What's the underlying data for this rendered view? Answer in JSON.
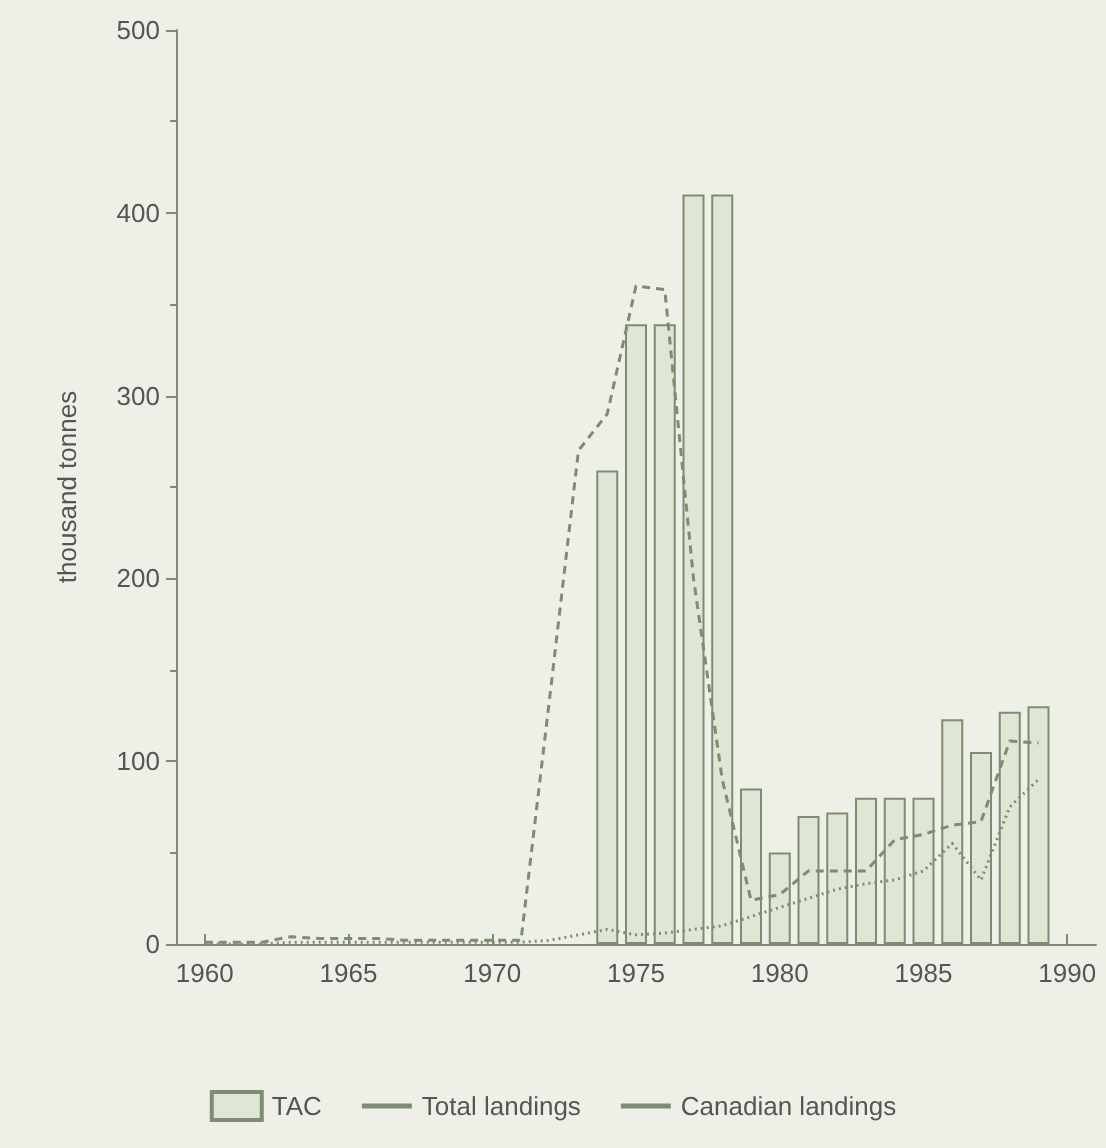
{
  "chart_data": {
    "type": "bar",
    "ylabel": "thousand tonnes",
    "x": [
      1974,
      1975,
      1976,
      1977,
      1978,
      1979,
      1980,
      1981,
      1982,
      1983,
      1984,
      1985,
      1986,
      1987,
      1988,
      1989
    ],
    "series": [
      {
        "name": "TAC",
        "color": "#dfe6d6",
        "values": [
          259,
          339,
          339,
          410,
          410,
          85,
          50,
          70,
          72,
          80,
          80,
          80,
          123,
          105,
          127,
          130
        ]
      },
      {
        "name": "Total landings",
        "type": "line",
        "line_style": "dashed",
        "color": "#7d8c72",
        "x": [
          1960,
          1961,
          1962,
          1963,
          1964,
          1965,
          1966,
          1967,
          1968,
          1969,
          1970,
          1971,
          1972,
          1973,
          1974,
          1975,
          1976,
          1977,
          1978,
          1979,
          1980,
          1981,
          1982,
          1983,
          1984,
          1985,
          1986,
          1987,
          1988,
          1989
        ],
        "values": [
          1,
          1,
          1,
          4,
          3,
          3,
          3,
          2,
          2,
          2,
          2,
          2,
          135,
          270,
          290,
          360,
          358,
          200,
          90,
          24,
          27,
          40,
          40,
          40,
          57,
          60,
          65,
          67,
          111,
          110
        ]
      },
      {
        "name": "Canadian landings",
        "type": "line",
        "line_style": "dotted",
        "color": "#7d8c72",
        "x": [
          1960,
          1961,
          1962,
          1963,
          1964,
          1965,
          1966,
          1967,
          1968,
          1969,
          1970,
          1971,
          1972,
          1973,
          1974,
          1975,
          1976,
          1977,
          1978,
          1979,
          1980,
          1981,
          1982,
          1983,
          1984,
          1985,
          1986,
          1987,
          1988,
          1989
        ],
        "values": [
          0,
          0,
          0,
          1,
          1,
          1,
          1,
          1,
          1,
          1,
          1,
          1,
          2,
          5,
          8,
          5,
          6,
          8,
          10,
          15,
          20,
          25,
          30,
          33,
          35,
          40,
          55,
          35,
          75,
          90
        ]
      }
    ],
    "xlim": [
      1959,
      1991
    ],
    "xticks": [
      1960,
      1965,
      1970,
      1975,
      1980,
      1985,
      1990
    ],
    "ylim": [
      0,
      500
    ],
    "yticks": [
      0,
      100,
      200,
      300,
      400,
      500
    ],
    "grid": false,
    "legend": "bottom",
    "marker": "none"
  }
}
